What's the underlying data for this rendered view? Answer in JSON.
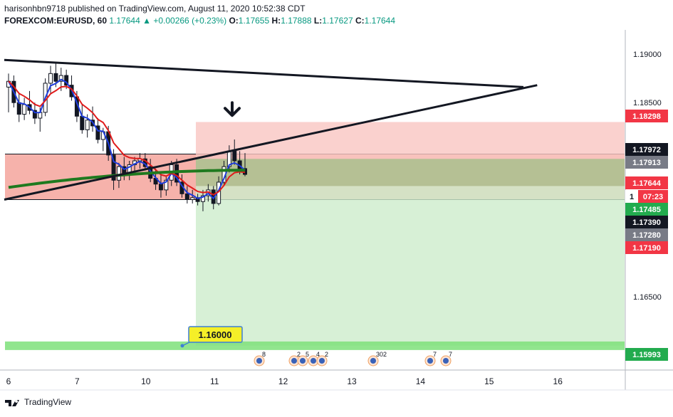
{
  "header": {
    "line1": "harisonhbn9718 published on TradingView.com, August 11, 2020 10:52:38 CDT",
    "symbol": "FOREXCOM:EURUSD, 60",
    "last": "1.17644",
    "change": "+0.00266 (+0.23%)",
    "o_label": "O:",
    "o": "1.17655",
    "h_label": "H:",
    "h": "1.17888",
    "l_label": "L:",
    "l": "1.17627",
    "c_label": "C:",
    "c": "1.17644",
    "up_color": "#089981"
  },
  "footer": {
    "brand": "TradingView"
  },
  "annotation": {
    "callout": "1.16000"
  },
  "events": [
    "8",
    "2",
    "5",
    "4",
    "2",
    "302",
    "7",
    "7"
  ],
  "chart_data": {
    "type": "candlestick",
    "x_ticks": [
      "6",
      "7",
      "10",
      "11",
      "12",
      "13",
      "14",
      "15",
      "16"
    ],
    "y_ticks": [
      "1.19000",
      "1.18500",
      "1.16500"
    ],
    "y_range": [
      1.1575,
      1.1925
    ],
    "price_labels": [
      {
        "value": "1.18298",
        "kind": "red"
      },
      {
        "value": "1.17972",
        "kind": "black"
      },
      {
        "value": "1.17913",
        "kind": "gray"
      },
      {
        "value": "1.17644",
        "kind": "red"
      },
      {
        "value": "1",
        "kind": "plain"
      },
      {
        "value": "07:23",
        "kind": "red"
      },
      {
        "value": "1.17485",
        "kind": "green"
      },
      {
        "value": "1.17390",
        "kind": "black"
      },
      {
        "value": "1.17280",
        "kind": "gray"
      },
      {
        "value": "1.17190",
        "kind": "red"
      },
      {
        "value": "1.15993",
        "kind": "green"
      }
    ],
    "zones": {
      "resistance": [
        1.175,
        1.1797
      ],
      "stop": [
        1.1797,
        1.183
      ],
      "entry": 1.1792,
      "target": 1.15993
    },
    "trendlines": [
      {
        "from": [
          "6",
          1.1894
        ],
        "to": [
          "15.5",
          1.1866
        ]
      },
      {
        "from": [
          "6",
          1.175
        ],
        "to": [
          "15.7",
          1.1868
        ]
      }
    ],
    "candles": [
      [
        1.1866,
        1.188,
        1.184,
        1.1872
      ],
      [
        1.1872,
        1.1878,
        1.1845,
        1.185
      ],
      [
        1.185,
        1.186,
        1.183,
        1.1838
      ],
      [
        1.1838,
        1.1855,
        1.1832,
        1.1848
      ],
      [
        1.1848,
        1.1862,
        1.1838,
        1.1842
      ],
      [
        1.1842,
        1.185,
        1.1828,
        1.1834
      ],
      [
        1.1834,
        1.1845,
        1.182,
        1.184
      ],
      [
        1.184,
        1.1875,
        1.1836,
        1.187
      ],
      [
        1.187,
        1.1888,
        1.186,
        1.188
      ],
      [
        1.188,
        1.1892,
        1.1866,
        1.1872
      ],
      [
        1.1872,
        1.1886,
        1.1862,
        1.1878
      ],
      [
        1.1878,
        1.1884,
        1.1864,
        1.1868
      ],
      [
        1.1868,
        1.1878,
        1.1852,
        1.1856
      ],
      [
        1.1856,
        1.1862,
        1.183,
        1.1836
      ],
      [
        1.1836,
        1.1848,
        1.1818,
        1.1822
      ],
      [
        1.1822,
        1.1838,
        1.1814,
        1.1832
      ],
      [
        1.1832,
        1.1846,
        1.182,
        1.1826
      ],
      [
        1.1826,
        1.1834,
        1.1808,
        1.1812
      ],
      [
        1.1812,
        1.1824,
        1.18,
        1.182
      ],
      [
        1.182,
        1.1826,
        1.179,
        1.1796
      ],
      [
        1.1796,
        1.1802,
        1.176,
        1.177
      ],
      [
        1.177,
        1.1788,
        1.1762,
        1.1784
      ],
      [
        1.1784,
        1.1794,
        1.177,
        1.1776
      ],
      [
        1.1776,
        1.179,
        1.177,
        1.1786
      ],
      [
        1.1786,
        1.1794,
        1.1778,
        1.179
      ],
      [
        1.179,
        1.1798,
        1.1782,
        1.1792
      ],
      [
        1.1792,
        1.1798,
        1.178,
        1.1784
      ],
      [
        1.1784,
        1.1792,
        1.1768,
        1.1772
      ],
      [
        1.1772,
        1.1782,
        1.176,
        1.1766
      ],
      [
        1.1766,
        1.1778,
        1.1752,
        1.176
      ],
      [
        1.176,
        1.1774,
        1.1754,
        1.177
      ],
      [
        1.177,
        1.179,
        1.1764,
        1.1786
      ],
      [
        1.1786,
        1.1792,
        1.1764,
        1.1768
      ],
      [
        1.1768,
        1.1776,
        1.1752,
        1.1756
      ],
      [
        1.1756,
        1.1764,
        1.1746,
        1.175
      ],
      [
        1.175,
        1.176,
        1.1746,
        1.1752
      ],
      [
        1.1752,
        1.1756,
        1.1744,
        1.1748
      ],
      [
        1.1748,
        1.176,
        1.1738,
        1.1754
      ],
      [
        1.1754,
        1.1766,
        1.1748,
        1.176
      ],
      [
        1.176,
        1.1764,
        1.174,
        1.1746
      ],
      [
        1.1746,
        1.1774,
        1.1744,
        1.1768
      ],
      [
        1.1768,
        1.179,
        1.1764,
        1.1784
      ],
      [
        1.1784,
        1.1806,
        1.1778,
        1.18
      ],
      [
        1.18,
        1.1812,
        1.1786,
        1.179
      ],
      [
        1.179,
        1.18,
        1.1776,
        1.1782
      ],
      [
        1.1782,
        1.1798,
        1.1774,
        1.1776
      ]
    ],
    "ema_fast_color": "#1e3cdc",
    "ema_mid_color": "#e01b1b",
    "ma_slow_color": "#1f7a1f"
  }
}
